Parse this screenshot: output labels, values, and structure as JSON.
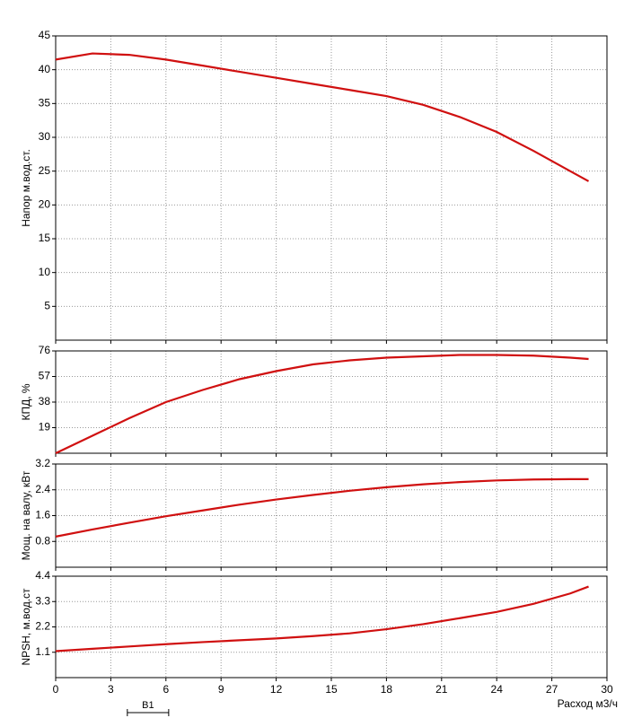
{
  "chart_data": [
    {
      "type": "line",
      "ylabel": "Напор м.вод.ст.",
      "xlim": [
        0,
        30
      ],
      "ylim": [
        0,
        45
      ],
      "yticks": [
        5,
        10,
        15,
        20,
        25,
        30,
        35,
        40,
        45
      ],
      "grid": true,
      "color": "#d01010",
      "x": [
        0,
        2,
        4,
        6,
        8,
        10,
        12,
        14,
        16,
        18,
        20,
        22,
        24,
        26,
        28,
        29
      ],
      "values": [
        41.5,
        42.4,
        42.2,
        41.5,
        40.6,
        39.7,
        38.8,
        37.9,
        37.0,
        36.1,
        34.8,
        33.0,
        30.8,
        28.0,
        25.0,
        23.5
      ]
    },
    {
      "type": "line",
      "ylabel": "КПД, %",
      "xlim": [
        0,
        30
      ],
      "ylim": [
        0,
        76
      ],
      "yticks": [
        19,
        38,
        57,
        76
      ],
      "grid": true,
      "color": "#d01010",
      "x": [
        0,
        2,
        4,
        6,
        8,
        10,
        12,
        14,
        16,
        18,
        20,
        22,
        24,
        26,
        28,
        29
      ],
      "values": [
        0,
        13,
        26,
        38,
        47,
        55,
        61,
        66,
        69,
        71,
        72,
        73,
        73,
        72.5,
        71,
        70
      ]
    },
    {
      "type": "line",
      "ylabel": "Мощ. на валу, кВт",
      "xlim": [
        0,
        30
      ],
      "ylim": [
        0,
        3.2
      ],
      "yticks": [
        0.8,
        1.6,
        2.4,
        3.2
      ],
      "grid": true,
      "color": "#d01010",
      "x": [
        0,
        2,
        4,
        6,
        8,
        10,
        12,
        14,
        16,
        18,
        20,
        22,
        24,
        26,
        28,
        29
      ],
      "values": [
        0.95,
        1.17,
        1.38,
        1.58,
        1.76,
        1.94,
        2.1,
        2.24,
        2.37,
        2.48,
        2.57,
        2.64,
        2.69,
        2.72,
        2.73,
        2.73
      ]
    },
    {
      "type": "line",
      "ylabel": "NPSH, м.вод.ст",
      "xlabel": "Расход м3/ч",
      "xlim": [
        0,
        30
      ],
      "ylim": [
        0,
        4.4
      ],
      "yticks": [
        1.1,
        2.2,
        3.3,
        4.4
      ],
      "xticks": [
        0,
        3,
        6,
        9,
        12,
        15,
        18,
        21,
        24,
        27,
        30
      ],
      "grid": true,
      "color": "#d01010",
      "x": [
        0,
        2,
        4,
        6,
        8,
        10,
        12,
        14,
        16,
        18,
        20,
        22,
        24,
        26,
        28,
        29
      ],
      "values": [
        1.15,
        1.25,
        1.35,
        1.45,
        1.54,
        1.62,
        1.7,
        1.8,
        1.92,
        2.1,
        2.32,
        2.58,
        2.85,
        3.2,
        3.65,
        3.95
      ],
      "annotation": "B1",
      "annotation_x": [
        3.9,
        6.15
      ]
    }
  ]
}
